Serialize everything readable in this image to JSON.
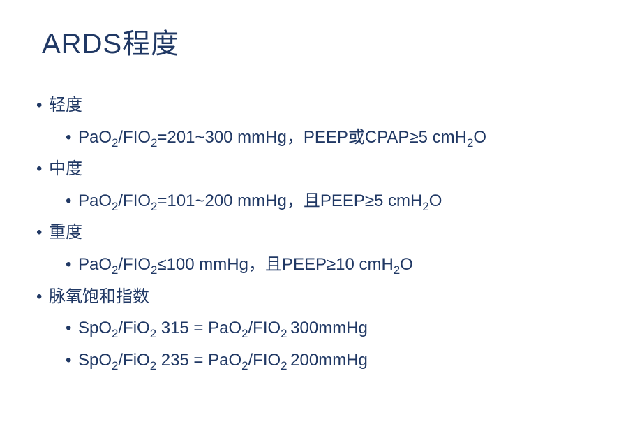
{
  "slide": {
    "title": "ARDS程度",
    "text_color": "#203864",
    "background_color": "#ffffff",
    "title_fontsize": 40,
    "body_fontsize": 24,
    "items": [
      {
        "label": "轻度",
        "children": [
          {
            "html": "PaO<sub>2</sub>/FIO<sub>2</sub>=201~300 mmHg，PEEP或CPAP≥5 cmH<sub>2</sub>O"
          }
        ]
      },
      {
        "label": "中度",
        "children": [
          {
            "html": "PaO<sub>2</sub>/FIO<sub>2</sub>=101~200 mmHg，且PEEP≥5 cmH<sub>2</sub>O"
          }
        ]
      },
      {
        "label": "重度",
        "children": [
          {
            "html": "PaO<sub>2</sub>/FIO<sub>2</sub>≤100 mmHg，且PEEP≥10 cmH<sub>2</sub>O"
          }
        ]
      },
      {
        "label": "脉氧饱和指数",
        "children": [
          {
            "html": "SpO<sub>2</sub>/FiO<sub>2</sub> 315 = PaO<sub>2</sub>/FIO<sub>2 </sub>300mmHg"
          },
          {
            "html": "SpO<sub>2</sub>/FiO<sub>2</sub> 235 = PaO<sub>2</sub>/FIO<sub>2 </sub>200mmHg"
          }
        ]
      }
    ]
  }
}
